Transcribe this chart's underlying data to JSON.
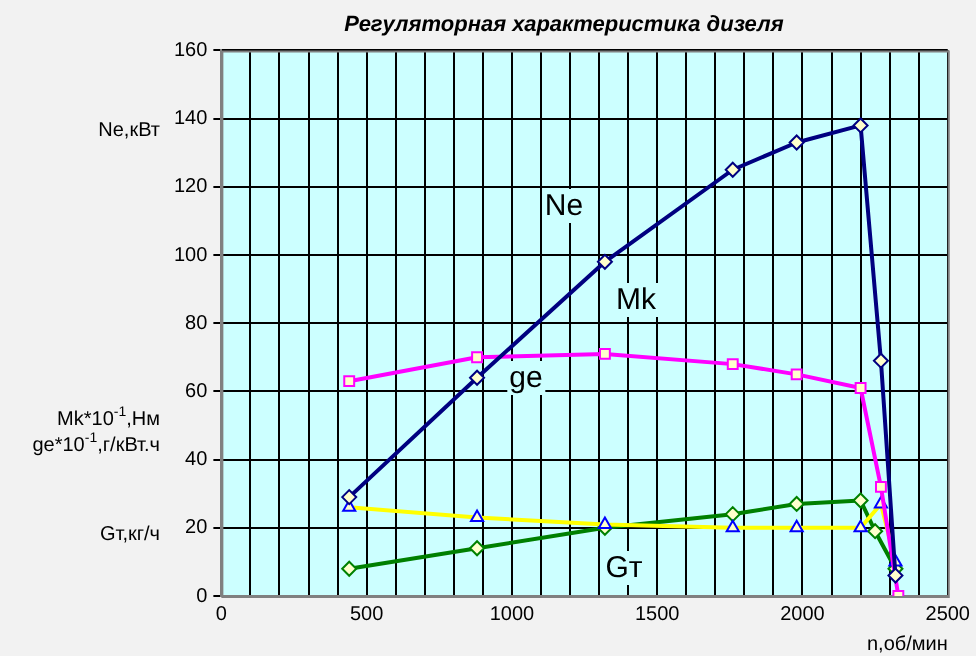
{
  "chart_data": {
    "type": "line",
    "title": "Регуляторная характеристика дизеля",
    "xlabel": "n,об/мин",
    "annotations": [
      "Ne,кВт",
      "Mk*10$^{-1}$,Нм",
      "ge*10$^{-1}$,г/кВт.ч",
      "Gт,кг/ч",
      "Ne",
      "Mk",
      "ge",
      "Gт"
    ],
    "series": [
      {
        "color": "#000080",
        "marker": "diamond",
        "x": [
          440,
          880,
          1320,
          1760,
          1980,
          2200,
          2270,
          2320
        ],
        "values": [
          29,
          64,
          98,
          125,
          133,
          138,
          69,
          6
        ]
      },
      {
        "color": "#ff00ff",
        "marker": "square",
        "x": [
          440,
          880,
          1320,
          1760,
          1980,
          2200,
          2270,
          2330
        ],
        "values": [
          63,
          70,
          71,
          68,
          65,
          61,
          32,
          0
        ]
      },
      {
        "color": "#ffff00",
        "marker": "triangle",
        "x": [
          440,
          880,
          1320,
          1760,
          1980,
          2200,
          2270,
          2320
        ],
        "values": [
          26,
          23,
          21,
          20,
          20,
          20,
          27,
          10
        ]
      },
      {
        "color": "#008000",
        "marker": "diamond",
        "x": [
          440,
          880,
          1320,
          1760,
          1980,
          2200,
          2250,
          2320
        ],
        "values": [
          8,
          14,
          20,
          24,
          27,
          28,
          19,
          8
        ]
      }
    ],
    "xlim": [
      0,
      2500
    ],
    "xticks": [
      0,
      {
        "value": 100,
        "label": null
      },
      {
        "value": 200,
        "label": null
      },
      {
        "value": 300,
        "label": null
      },
      {
        "value": 400,
        "label": null
      },
      500,
      {
        "value": 600,
        "label": null
      },
      {
        "value": 700,
        "label": null
      },
      {
        "value": 800,
        "label": null
      },
      {
        "value": 900,
        "label": null
      },
      1000,
      {
        "value": 1100,
        "label": null
      },
      {
        "value": 1200,
        "label": null
      },
      {
        "value": 1300,
        "label": null
      },
      {
        "value": 1400,
        "label": null
      },
      1500,
      {
        "value": 1600,
        "label": null
      },
      {
        "value": 1700,
        "label": null
      },
      {
        "value": 1800,
        "label": null
      },
      {
        "value": 1900,
        "label": null
      },
      2000,
      {
        "value": 2100,
        "label": null
      },
      {
        "value": 2200,
        "label": null
      },
      {
        "value": 2300,
        "label": null
      },
      {
        "value": 2400,
        "label": null
      },
      2500
    ],
    "ylim": [
      0,
      160
    ],
    "yticks": [
      0,
      20,
      40,
      60,
      80,
      100,
      120,
      140,
      160
    ],
    "grid": true,
    "legend": false,
    "line_style": "solid"
  }
}
